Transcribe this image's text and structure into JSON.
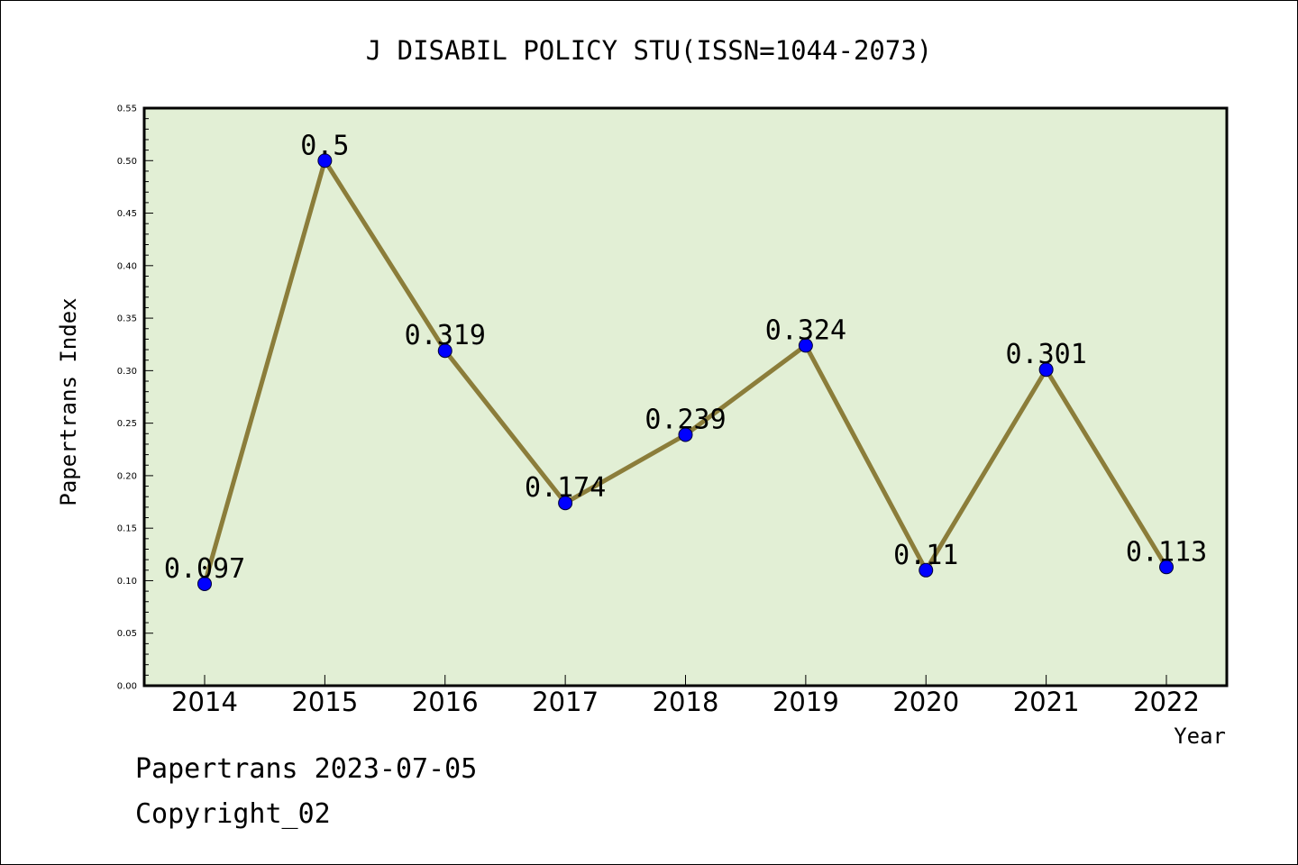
{
  "chart_data": {
    "type": "line",
    "title": "J DISABIL POLICY STU(ISSN=1044-2073)",
    "xlabel": "Year",
    "ylabel": "Papertrans Index",
    "categories": [
      "2014",
      "2015",
      "2016",
      "2017",
      "2018",
      "2019",
      "2020",
      "2021",
      "2022"
    ],
    "series": [
      {
        "values": [
          0.097,
          0.5,
          0.319,
          0.174,
          0.239,
          0.324,
          0.11,
          0.301,
          0.113
        ],
        "data_labels": [
          "0.097",
          "0.5",
          "0.319",
          "0.174",
          "0.239",
          "0.324",
          "0.11",
          "0.301",
          "0.113"
        ],
        "line_color": "#8b7d3a",
        "marker_color": "#0000ff"
      }
    ],
    "ylim": [
      0,
      0.55
    ],
    "yticks": [
      "0.00",
      "0.05",
      "0.10",
      "0.15",
      "0.20",
      "0.25",
      "0.30",
      "0.35",
      "0.40",
      "0.45",
      "0.50",
      "0.55"
    ],
    "plot_background": "#e2efd5",
    "grid": false,
    "legend": "none"
  },
  "footer": {
    "date_line": "Papertrans 2023-07-05",
    "copyright": "Copyright_02"
  }
}
